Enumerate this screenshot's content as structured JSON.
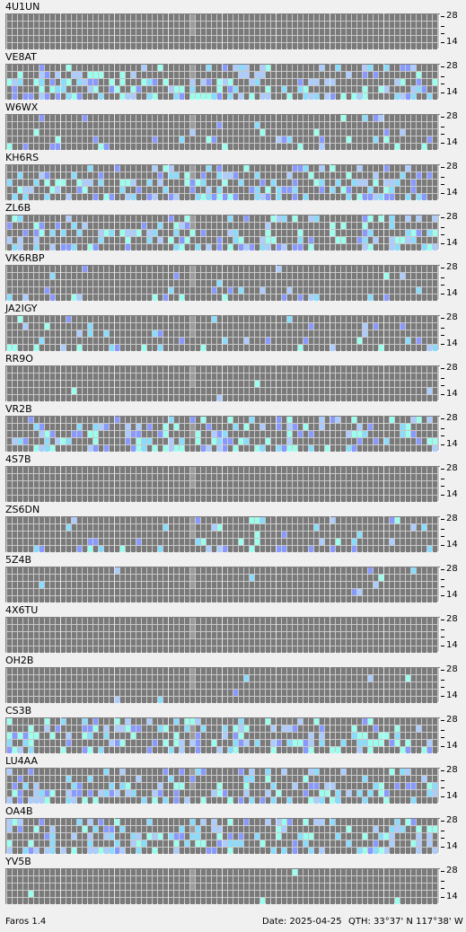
{
  "stations": [
    {
      "callsign": "4U1UN",
      "activity": "none"
    },
    {
      "callsign": "VE8AT",
      "activity": "high"
    },
    {
      "callsign": "W6WX",
      "activity": "medium"
    },
    {
      "callsign": "KH6RS",
      "activity": "high"
    },
    {
      "callsign": "ZL6B",
      "activity": "high"
    },
    {
      "callsign": "VK6RBP",
      "activity": "medium"
    },
    {
      "callsign": "JA2IGY",
      "activity": "medium"
    },
    {
      "callsign": "RR9O",
      "activity": "low"
    },
    {
      "callsign": "VR2B",
      "activity": "high"
    },
    {
      "callsign": "4S7B",
      "activity": "none"
    },
    {
      "callsign": "ZS6DN",
      "activity": "medium"
    },
    {
      "callsign": "5Z4B",
      "activity": "low"
    },
    {
      "callsign": "4X6TU",
      "activity": "none"
    },
    {
      "callsign": "OH2B",
      "activity": "low"
    },
    {
      "callsign": "CS3B",
      "activity": "high"
    },
    {
      "callsign": "LU4AA",
      "activity": "high"
    },
    {
      "callsign": "OA4B",
      "activity": "high"
    },
    {
      "callsign": "YV5B",
      "activity": "low"
    }
  ],
  "scale": {
    "top_label": "28",
    "bottom_label": "14"
  },
  "status": {
    "app_version": "Faros 1.4",
    "date": "Date: 2025-04-25",
    "qth": "QTH: 33°37' N  117°38' W"
  },
  "colors": {
    "cell_empty": "#7a7a7a",
    "cell_highlight": "#9c9c9c",
    "grid_line": "#bebebe",
    "signal_strong": "#99ffee",
    "signal_medium": "#88ddff",
    "signal_weak": "#8899ff",
    "signal_blend": "#aaccff"
  }
}
